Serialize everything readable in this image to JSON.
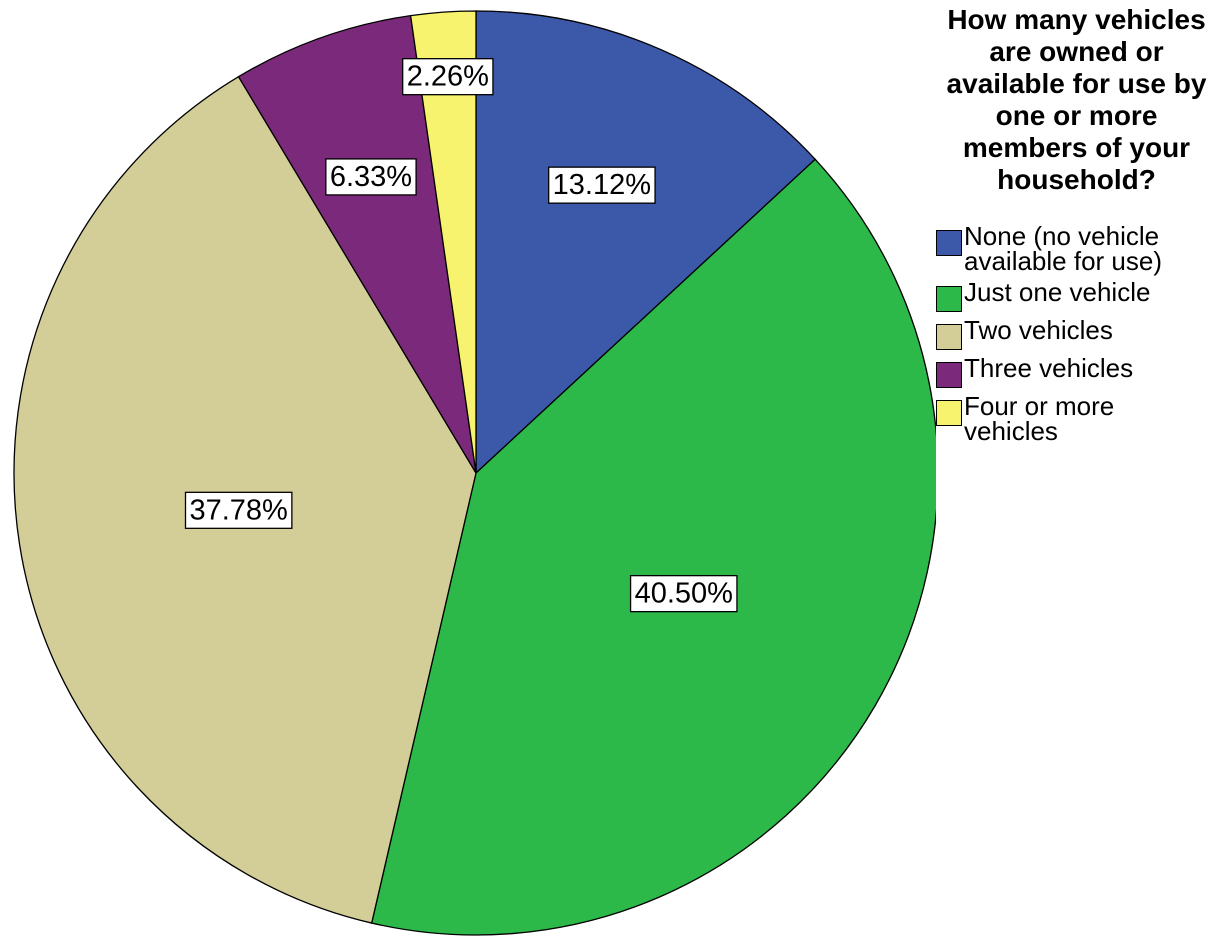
{
  "chart_data": {
    "type": "pie",
    "legend_title": "How many vehicles are owned or available for use by one or more members of your household?",
    "categories": [
      "None (no vehicle available for use)",
      "Just one vehicle",
      "Two vehicles",
      "Three vehicles",
      "Four or more vehicles"
    ],
    "values": [
      13.12,
      40.5,
      37.78,
      6.33,
      2.26
    ],
    "value_labels": [
      "13.12%",
      "40.50%",
      "37.78%",
      "6.33%",
      "2.26%"
    ],
    "colors": [
      "#3c58a8",
      "#2db84a",
      "#d3ce97",
      "#7b2a7b",
      "#f7f36f"
    ],
    "legend": "right"
  }
}
